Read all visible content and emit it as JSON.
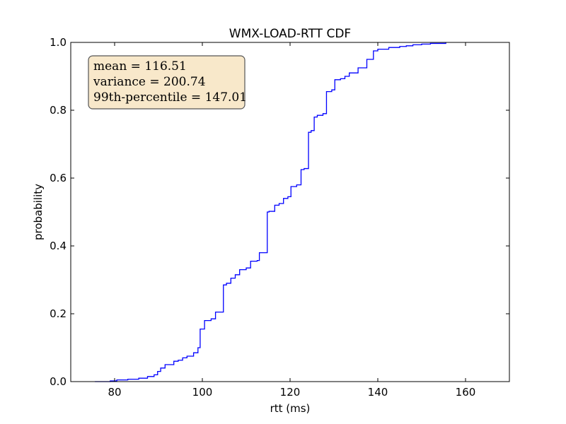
{
  "chart_data": {
    "type": "line",
    "title": "WMX-LOAD-RTT CDF",
    "xlabel": "rtt (ms)",
    "ylabel": "probability",
    "xlim": [
      70,
      170
    ],
    "ylim": [
      0.0,
      1.0
    ],
    "xticks": [
      80,
      100,
      120,
      140,
      160
    ],
    "xtick_labels": [
      "80",
      "100",
      "120",
      "140",
      "160"
    ],
    "yticks": [
      0.0,
      0.2,
      0.4,
      0.6,
      0.8,
      1.0
    ],
    "ytick_labels": [
      "0.0",
      "0.2",
      "0.4",
      "0.6",
      "0.8",
      "1.0"
    ],
    "grid": false,
    "line_color": "#0000ff",
    "stats_box": {
      "lines": [
        "mean = 116.51",
        "variance = 200.74",
        "99th-percentile = 147.01"
      ],
      "facecolor": "#f5deb3",
      "edgecolor": "#555555",
      "placement": "top-left"
    },
    "series": [
      {
        "x": [
          75.5,
          79,
          80.5,
          83,
          85.5,
          87.5,
          89,
          89.8,
          90.5,
          91.5,
          93.5,
          94.5,
          95.5,
          96.5,
          98,
          99,
          99.5,
          100.5,
          102,
          103,
          104.8,
          105.5,
          106.5,
          107.5,
          108.5,
          110,
          111,
          112.5,
          113,
          114.8,
          115.2,
          116.5,
          117.5,
          118.5,
          119.5,
          120.2,
          121.5,
          122.5,
          123.2,
          124.2,
          124.8,
          125.5,
          126.2,
          127.5,
          128.3,
          129.5,
          130.2,
          131.5,
          132.5,
          133.5,
          135.5,
          137.5,
          139,
          140,
          142.5,
          145,
          146.5,
          148,
          150,
          152,
          155.5
        ],
        "y": [
          0.0,
          0.002,
          0.005,
          0.007,
          0.01,
          0.015,
          0.02,
          0.03,
          0.04,
          0.05,
          0.06,
          0.063,
          0.07,
          0.075,
          0.085,
          0.1,
          0.155,
          0.18,
          0.185,
          0.205,
          0.285,
          0.29,
          0.305,
          0.315,
          0.33,
          0.335,
          0.355,
          0.357,
          0.38,
          0.5,
          0.502,
          0.52,
          0.525,
          0.54,
          0.545,
          0.575,
          0.58,
          0.625,
          0.628,
          0.735,
          0.74,
          0.78,
          0.785,
          0.79,
          0.855,
          0.86,
          0.89,
          0.893,
          0.9,
          0.91,
          0.925,
          0.95,
          0.975,
          0.98,
          0.985,
          0.988,
          0.99,
          0.993,
          0.995,
          0.997,
          1.0
        ]
      }
    ]
  }
}
